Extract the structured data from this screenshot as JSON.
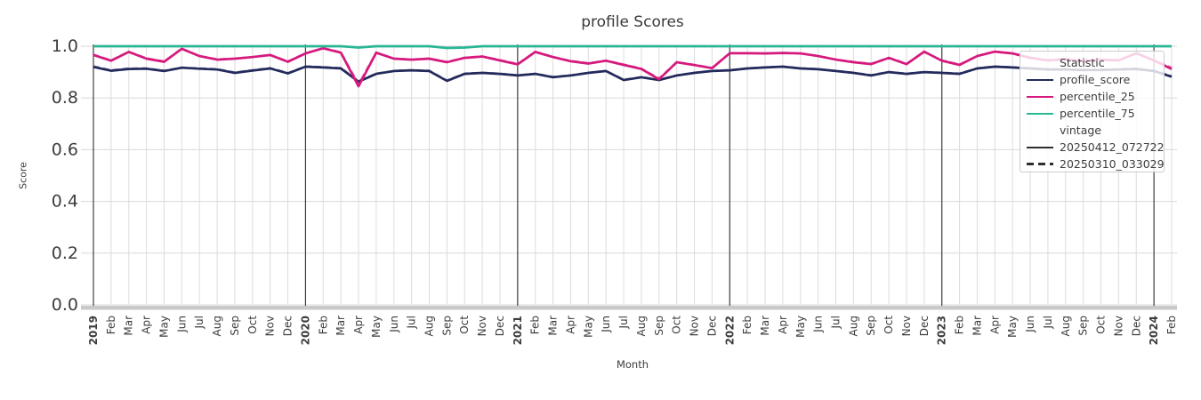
{
  "chart_data": {
    "type": "line",
    "title": "profile Scores",
    "xlabel": "Month",
    "ylabel": "Score",
    "ylim": [
      0.0,
      1.0
    ],
    "yticks": [
      0.0,
      0.2,
      0.4,
      0.6,
      0.8,
      1.0
    ],
    "grid": true,
    "legend_position": "upper right",
    "x_labels": [
      "2019",
      "Feb",
      "Mar",
      "Apr",
      "May",
      "Jun",
      "Jul",
      "Aug",
      "Sep",
      "Oct",
      "Nov",
      "Dec",
      "2020",
      "Feb",
      "Mar",
      "Apr",
      "May",
      "Jun",
      "Jul",
      "Aug",
      "Sep",
      "Oct",
      "Nov",
      "Dec",
      "2021",
      "Feb",
      "Mar",
      "Apr",
      "May",
      "Jun",
      "Jul",
      "Aug",
      "Sep",
      "Oct",
      "Nov",
      "Dec",
      "2022",
      "Feb",
      "Mar",
      "Apr",
      "May",
      "Jun",
      "Jul",
      "Aug",
      "Sep",
      "Oct",
      "Nov",
      "Dec",
      "2023",
      "Feb",
      "Mar",
      "Apr",
      "May",
      "Jun",
      "Jul",
      "Aug",
      "Sep",
      "Oct",
      "Nov",
      "Dec",
      "2024",
      "Feb"
    ],
    "year_indices": [
      0,
      12,
      24,
      36,
      48,
      60
    ],
    "series": [
      {
        "name": "profile_score",
        "vintage": "20250412_072722",
        "style": "solid",
        "color": "#232a5c",
        "values": [
          0.92,
          0.905,
          0.912,
          0.913,
          0.904,
          0.917,
          0.913,
          0.91,
          0.897,
          0.906,
          0.914,
          0.895,
          0.921,
          0.918,
          0.914,
          0.863,
          0.893,
          0.904,
          0.907,
          0.904,
          0.866,
          0.893,
          0.897,
          0.893,
          0.887,
          0.893,
          0.88,
          0.887,
          0.897,
          0.904,
          0.869,
          0.88,
          0.869,
          0.887,
          0.897,
          0.904,
          0.907,
          0.914,
          0.918,
          0.921,
          0.914,
          0.911,
          0.904,
          0.897,
          0.887,
          0.9,
          0.893,
          0.9,
          0.897,
          0.893,
          0.914,
          0.921,
          0.918,
          0.914,
          0.91,
          0.91,
          0.908,
          0.908,
          0.91,
          0.912,
          0.904,
          0.882
        ]
      },
      {
        "name": "profile_score",
        "vintage": "20250310_033029",
        "style": "dashed",
        "color": "#232a5c",
        "values": [
          0.923,
          0.908,
          0.914,
          0.915,
          0.906,
          0.918,
          0.915,
          0.912,
          0.899,
          0.908,
          0.916,
          0.897,
          0.922,
          0.92,
          0.916,
          0.866,
          0.895,
          0.905,
          0.908,
          0.906,
          0.868,
          0.895,
          0.898,
          0.894,
          0.888,
          0.894,
          0.882,
          0.888,
          0.898,
          0.905,
          0.871,
          0.881,
          0.871,
          0.888,
          0.898,
          0.905,
          0.908,
          0.915,
          0.919,
          0.922,
          0.915,
          0.912,
          0.905,
          0.898,
          0.889,
          0.901,
          0.894,
          0.901,
          0.898,
          0.895,
          0.915,
          0.922,
          0.919,
          0.915,
          0.912,
          0.911,
          0.909,
          0.91,
          0.912,
          0.914,
          0.906,
          0.885
        ]
      },
      {
        "name": "percentile_25",
        "vintage": "20250412_072722",
        "style": "solid",
        "color": "#d6197d",
        "values": [
          0.966,
          0.944,
          0.978,
          0.952,
          0.94,
          0.99,
          0.962,
          0.948,
          0.952,
          0.958,
          0.966,
          0.94,
          0.972,
          0.992,
          0.975,
          0.845,
          0.975,
          0.952,
          0.948,
          0.952,
          0.938,
          0.955,
          0.96,
          0.945,
          0.93,
          0.978,
          0.958,
          0.942,
          0.933,
          0.944,
          0.928,
          0.912,
          0.872,
          0.938,
          0.927,
          0.915,
          0.973,
          0.973,
          0.972,
          0.974,
          0.972,
          0.962,
          0.948,
          0.938,
          0.931,
          0.955,
          0.931,
          0.979,
          0.944,
          0.928,
          0.962,
          0.979,
          0.972,
          0.955,
          0.945,
          0.95,
          0.942,
          0.948,
          0.945,
          0.973,
          0.945,
          0.912
        ]
      },
      {
        "name": "percentile_25",
        "vintage": "20250310_033029",
        "style": "dashed",
        "color": "#d6197d",
        "values": [
          0.968,
          0.946,
          0.979,
          0.954,
          0.942,
          0.991,
          0.963,
          0.95,
          0.953,
          0.959,
          0.967,
          0.942,
          0.973,
          0.993,
          0.977,
          0.855,
          0.976,
          0.953,
          0.949,
          0.953,
          0.94,
          0.956,
          0.961,
          0.947,
          0.932,
          0.979,
          0.959,
          0.944,
          0.935,
          0.945,
          0.93,
          0.914,
          0.876,
          0.939,
          0.929,
          0.917,
          0.974,
          0.974,
          0.973,
          0.975,
          0.973,
          0.963,
          0.949,
          0.94,
          0.933,
          0.956,
          0.933,
          0.977,
          0.946,
          0.93,
          0.963,
          0.98,
          0.973,
          0.957,
          0.947,
          0.951,
          0.944,
          0.949,
          0.947,
          0.971,
          0.947,
          0.918
        ]
      },
      {
        "name": "percentile_75",
        "vintage": "20250412_072722",
        "style": "solid",
        "color": "#2ab795",
        "values": [
          1.0,
          1.0,
          1.0,
          1.0,
          1.0,
          1.0,
          1.0,
          1.0,
          1.0,
          1.0,
          1.0,
          1.0,
          1.0,
          1.0,
          1.0,
          0.995,
          1.0,
          1.0,
          1.0,
          1.0,
          0.993,
          0.995,
          1.0,
          1.0,
          1.0,
          1.0,
          1.0,
          1.0,
          1.0,
          1.0,
          1.0,
          1.0,
          1.0,
          1.0,
          1.0,
          1.0,
          1.0,
          1.0,
          1.0,
          1.0,
          1.0,
          1.0,
          1.0,
          1.0,
          1.0,
          1.0,
          1.0,
          1.0,
          1.0,
          1.0,
          1.0,
          1.0,
          1.0,
          1.0,
          1.0,
          1.0,
          1.0,
          1.0,
          1.0,
          1.0,
          1.0,
          1.0
        ]
      },
      {
        "name": "percentile_75",
        "vintage": "20250310_033029",
        "style": "dashed",
        "color": "#2ab795",
        "values": [
          1.0,
          1.0,
          1.0,
          1.0,
          1.0,
          1.0,
          1.0,
          1.0,
          1.0,
          1.0,
          1.0,
          1.0,
          1.0,
          1.0,
          1.0,
          0.996,
          1.0,
          1.0,
          1.0,
          1.0,
          0.994,
          0.996,
          1.0,
          1.0,
          1.0,
          1.0,
          1.0,
          1.0,
          1.0,
          1.0,
          1.0,
          1.0,
          1.0,
          1.0,
          1.0,
          1.0,
          1.0,
          1.0,
          1.0,
          1.0,
          1.0,
          1.0,
          1.0,
          1.0,
          1.0,
          1.0,
          1.0,
          1.0,
          1.0,
          1.0,
          1.0,
          1.0,
          1.0,
          1.0,
          1.0,
          1.0,
          1.0,
          1.0,
          1.0,
          1.0,
          1.0,
          1.0
        ]
      }
    ]
  },
  "legend": {
    "title": "Statistic",
    "items": [
      {
        "label": "profile_score",
        "color": "#232a5c"
      },
      {
        "label": "percentile_25",
        "color": "#d6197d"
      },
      {
        "label": "percentile_75",
        "color": "#2ab795"
      }
    ],
    "group_label": "vintage",
    "vintages": [
      {
        "label": "20250412_072722",
        "style": "solid",
        "color": "#2e2e2e"
      },
      {
        "label": "20250310_033029",
        "style": "dashed",
        "color": "#2e2e2e"
      }
    ]
  },
  "style_colors": {
    "grid": "#dcdcdc",
    "hgrid": "#d9d9d9",
    "year_line": "#3f3f3f",
    "axis_bar": "#c9c9c9",
    "tick_text": "#3d3d3d",
    "title_text": "#3a3a3a"
  }
}
